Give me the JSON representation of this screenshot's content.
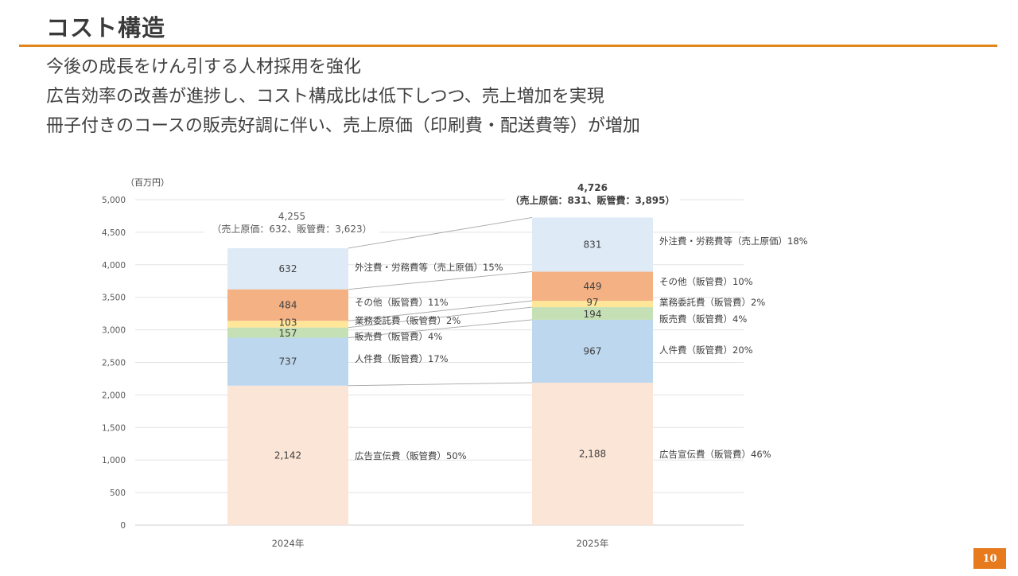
{
  "header": {
    "title": "コスト構造"
  },
  "bullets": [
    "今後の成長をけん引する人材採用を強化",
    "広告効率の改善が進捗し、コスト構成比は低下しつつ、売上増加を実現",
    "冊子付きのコースの販売好調に伴い、売上原価（印刷費・配送費等）が増加"
  ],
  "page_number": "10",
  "colors": {
    "accent": "#e0861c",
    "page_badge": "#e87a1e"
  },
  "chart_data": {
    "type": "bar",
    "stacked": true,
    "title": "",
    "unit_label": "（百万円）",
    "xlabel": "",
    "ylabel": "（百万円）",
    "ylim": [
      0,
      5000
    ],
    "yticks": [
      0,
      500,
      1000,
      1500,
      2000,
      2500,
      3000,
      3500,
      4000,
      4500,
      5000
    ],
    "ytick_labels": [
      "0",
      "500",
      "1,000",
      "1,500",
      "2,000",
      "2,500",
      "3,000",
      "3,500",
      "4,000",
      "4,500",
      "5,000"
    ],
    "grid": true,
    "categories": [
      "2024年",
      "2025年"
    ],
    "series": [
      {
        "name": "広告宣伝費（販管費）",
        "color": "#fbe5d6",
        "values": [
          2142,
          2188
        ],
        "value_labels": [
          "2,142",
          "2,188"
        ],
        "share_labels": [
          "50%",
          "46%"
        ]
      },
      {
        "name": "人件費（販管費）",
        "color": "#bdd7ee",
        "values": [
          737,
          967
        ],
        "value_labels": [
          "737",
          "967"
        ],
        "share_labels": [
          "17%",
          "20%"
        ]
      },
      {
        "name": "販売費（販管費）",
        "color": "#c5e0b4",
        "values": [
          157,
          194
        ],
        "value_labels": [
          "157",
          "194"
        ],
        "share_labels": [
          "4%",
          "4%"
        ]
      },
      {
        "name": "業務委託費（販管費）",
        "color": "#ffe699",
        "values": [
          103,
          97
        ],
        "value_labels": [
          "103",
          "97"
        ],
        "share_labels": [
          "2%",
          "2%"
        ]
      },
      {
        "name": "その他（販管費）",
        "color": "#f4b183",
        "values": [
          484,
          449
        ],
        "value_labels": [
          "484",
          "449"
        ],
        "share_labels": [
          "11%",
          "10%"
        ]
      },
      {
        "name": "外注費・労務費等（売上原価）",
        "color": "#deebf7",
        "values": [
          632,
          831
        ],
        "value_labels": [
          "632",
          "831"
        ],
        "share_labels": [
          "15%",
          "18%"
        ]
      }
    ],
    "totals": [
      {
        "total": "4,255",
        "breakdown": "（売上原価：632、販管費：3,623）",
        "bold": false
      },
      {
        "total": "4,726",
        "breakdown": "（売上原価：831、販管費：3,895）",
        "bold": true
      }
    ]
  }
}
